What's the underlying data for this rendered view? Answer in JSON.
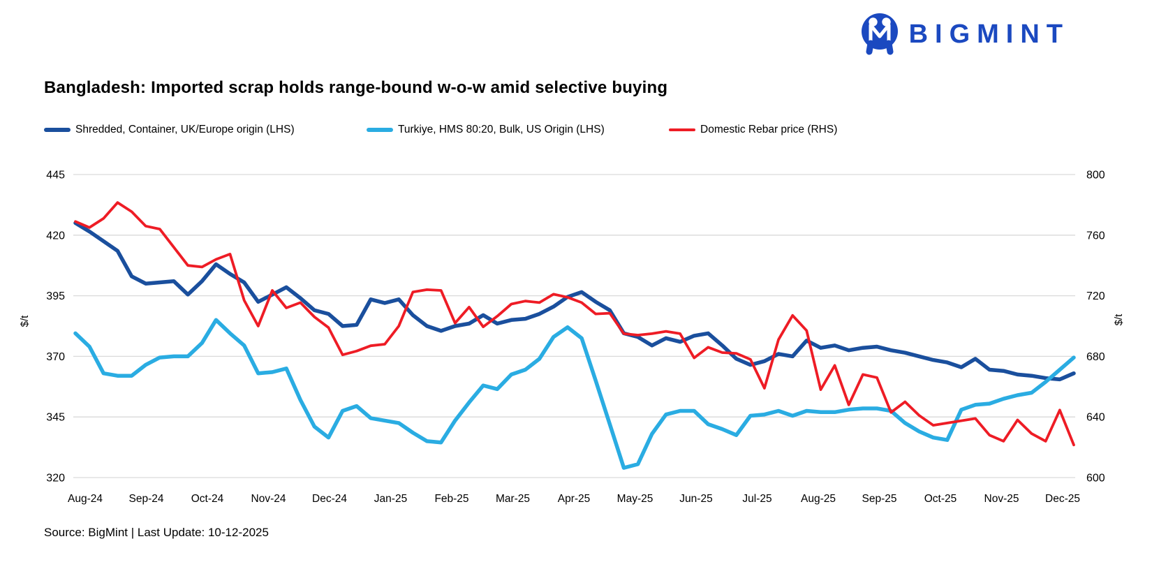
{
  "logo": {
    "text": "BIGMINT",
    "color": "#1b49c0"
  },
  "title": "Bangladesh: Imported scrap holds range-bound w-o-w amid selective buying",
  "legend": [
    {
      "label": "Shredded, Container, UK/Europe origin (LHS)",
      "color": "#1a4f9d"
    },
    {
      "label": "Turkiye, HMS 80:20, Bulk, US Origin (LHS)",
      "color": "#2aace2"
    },
    {
      "label": "Domestic Rebar price (RHS)",
      "color": "#ee1c25"
    }
  ],
  "footer": "Source: BigMint | Last Update: 10-12-2025",
  "chart_data": {
    "type": "line",
    "title": "Bangladesh: Imported scrap holds range-bound w-o-w amid selective buying",
    "x_categories": [
      "Aug-24",
      "Sep-24",
      "Oct-24",
      "Nov-24",
      "Dec-24",
      "Jan-25",
      "Feb-25",
      "Mar-25",
      "Apr-25",
      "May-25",
      "Jun-25",
      "Jul-25",
      "Aug-25",
      "Sep-25",
      "Oct-25",
      "Nov-25",
      "Dec-25"
    ],
    "frequency": "weekly",
    "grid": true,
    "legend_position": "top",
    "left_axis": {
      "label": "$/t",
      "ticks": [
        320,
        345,
        370,
        395,
        420,
        445
      ],
      "range": [
        320,
        445
      ],
      "tick_color": "#d9d9d9"
    },
    "right_axis": {
      "label": "$/t",
      "ticks": [
        600,
        640,
        680,
        720,
        760,
        800
      ],
      "range": [
        600,
        800
      ]
    },
    "series": [
      {
        "name": "Shredded, Container, UK/Europe origin (LHS)",
        "axis": "left",
        "color": "#1a4f9d",
        "width": 5.5,
        "values": [
          425,
          421.5,
          417.5,
          413.5,
          403,
          400,
          400.5,
          401,
          395.5,
          401,
          408,
          404,
          400.5,
          392.5,
          395.5,
          398.5,
          394,
          389,
          387.5,
          382.5,
          383,
          393.5,
          392,
          393.5,
          387,
          382.5,
          380.5,
          382.5,
          383.5,
          387,
          383.5,
          385,
          385.5,
          387.5,
          390.5,
          394.5,
          396.5,
          392.5,
          389,
          379.5,
          378,
          374.5,
          377.5,
          376,
          378.5,
          379.5,
          374.5,
          369,
          366.5,
          368,
          371,
          370,
          376.5,
          373.5,
          374.5,
          372.5,
          373.5,
          374,
          372.5,
          371.5,
          370,
          368.5,
          367.5,
          365.5,
          369,
          364.5,
          364,
          362.5,
          362,
          361,
          360.5,
          363
        ]
      },
      {
        "name": "Turkiye, HMS 80:20, Bulk, US Origin (LHS)",
        "axis": "left",
        "color": "#2aace2",
        "width": 5.5,
        "values": [
          379.5,
          374,
          363,
          362,
          362,
          366.5,
          369.5,
          370,
          370,
          375.5,
          385,
          379.5,
          374.5,
          363,
          363.5,
          365,
          352,
          341,
          336.5,
          347.5,
          349.5,
          344.5,
          343.5,
          342.5,
          338.5,
          335,
          334.5,
          343.5,
          351,
          358,
          356.5,
          362.5,
          364.5,
          369,
          378,
          382,
          377.5,
          360,
          342,
          324,
          325.5,
          338,
          346,
          347.5,
          347.5,
          342,
          340,
          337.5,
          345.5,
          346,
          347.5,
          345.5,
          347.5,
          347,
          347,
          348,
          348.5,
          348.5,
          347.5,
          342.5,
          339,
          336.5,
          335.5,
          348,
          350,
          350.5,
          352.5,
          354,
          355,
          359.5,
          364.5,
          369.5
        ]
      },
      {
        "name": "Domestic Rebar price (RHS)",
        "axis": "right",
        "color": "#ee1c25",
        "width": 3.8,
        "values": [
          769,
          765,
          771,
          781.5,
          775.5,
          766,
          764,
          752,
          740,
          739,
          744,
          747.5,
          717,
          700,
          723.5,
          712,
          715.5,
          706,
          699,
          681,
          683.5,
          687,
          688,
          700,
          722.5,
          724,
          723.5,
          702,
          712.5,
          699.5,
          706.5,
          714.5,
          716.5,
          715.5,
          721,
          719,
          715.5,
          708,
          708.5,
          695,
          694,
          695,
          696.5,
          695,
          679,
          686,
          682.5,
          682,
          678,
          659,
          691,
          707,
          697,
          658,
          674,
          648,
          668,
          666,
          643,
          650,
          641,
          634.5,
          636,
          637.5,
          639,
          628,
          624,
          638,
          629,
          624,
          644.5,
          621.5
        ]
      }
    ]
  }
}
